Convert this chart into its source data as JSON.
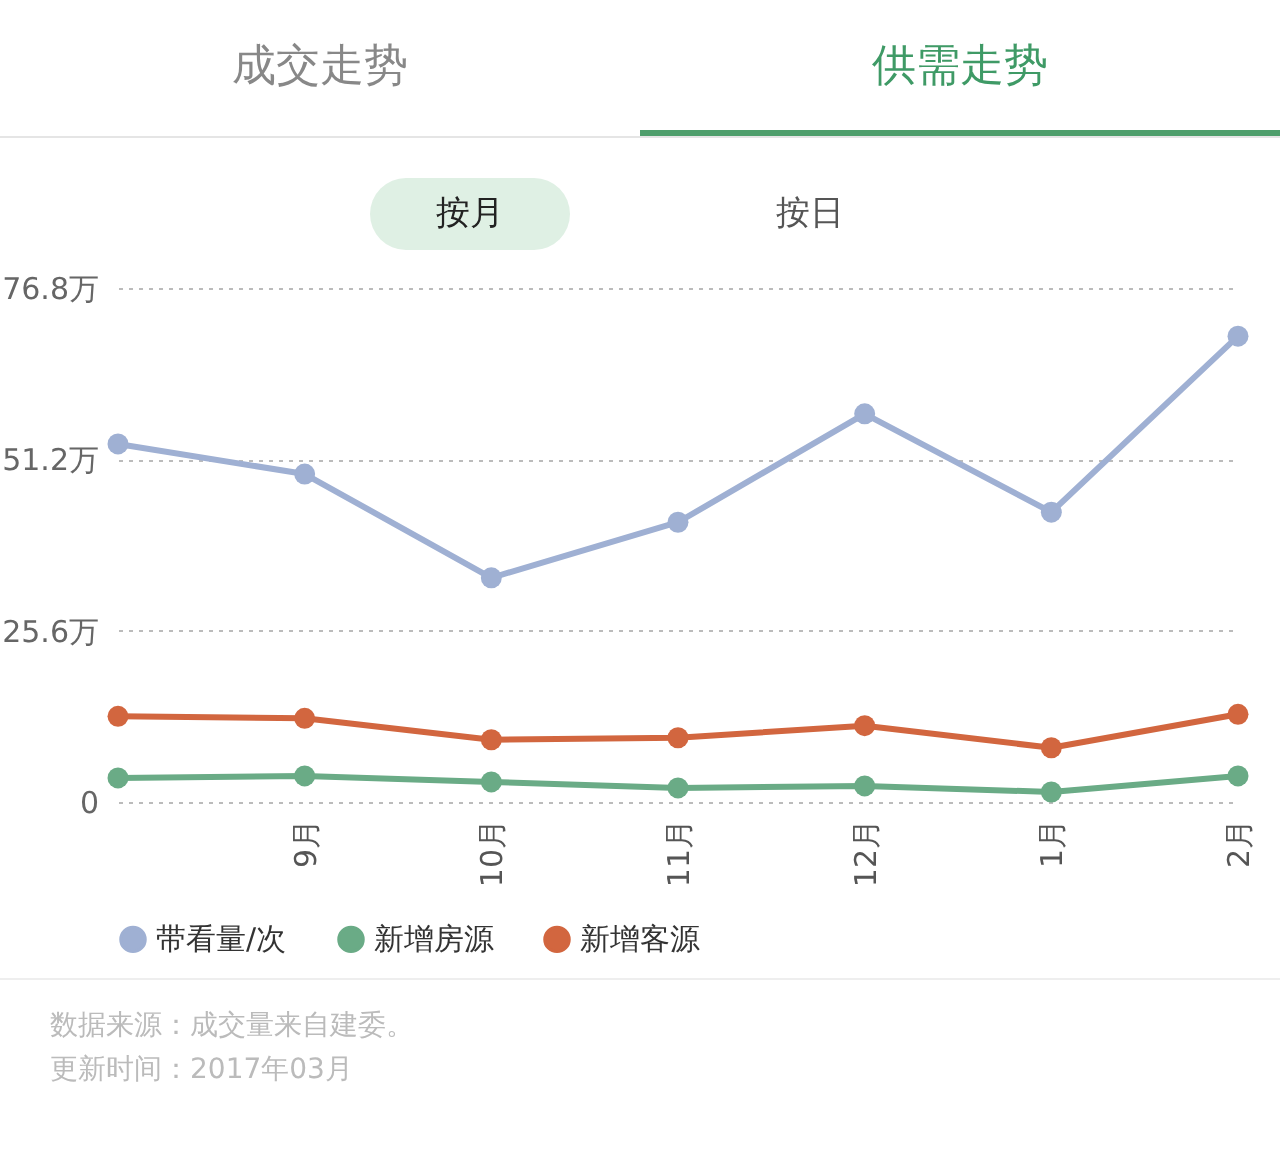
{
  "chart_data": {
    "type": "line",
    "categories": [
      null,
      "9月",
      "10月",
      "11月",
      "12月",
      "1月",
      "2月"
    ],
    "series": [
      {
        "name": "带看量/次",
        "color": "#9fb0d3",
        "values": [
          53.5,
          49.0,
          33.5,
          41.8,
          58.0,
          43.3,
          69.6
        ]
      },
      {
        "name": "新增房源",
        "color": "#6aab86",
        "values": [
          3.6,
          3.9,
          3.0,
          2.1,
          2.4,
          1.5,
          3.9
        ]
      },
      {
        "name": "新增客源",
        "color": "#d2663f",
        "values": [
          12.8,
          12.5,
          9.3,
          9.6,
          11.4,
          8.1,
          13.1
        ]
      }
    ],
    "ylim": [
      0,
      76.8
    ],
    "yticks": [
      0,
      {
        "value": 25.6,
        "label": "25.6万"
      },
      {
        "value": 51.2,
        "label": "51.2万"
      },
      {
        "value": 76.8,
        "label": "76.8万"
      }
    ],
    "grid": "y",
    "legend": "bottom left",
    "marker": "circle",
    "line_style": "solid",
    "annotations": [
      "成交走势",
      "供需走势",
      "按月",
      "按日",
      "数据来源：成交量来自建委。",
      "更新时间：2017年03月"
    ]
  }
}
